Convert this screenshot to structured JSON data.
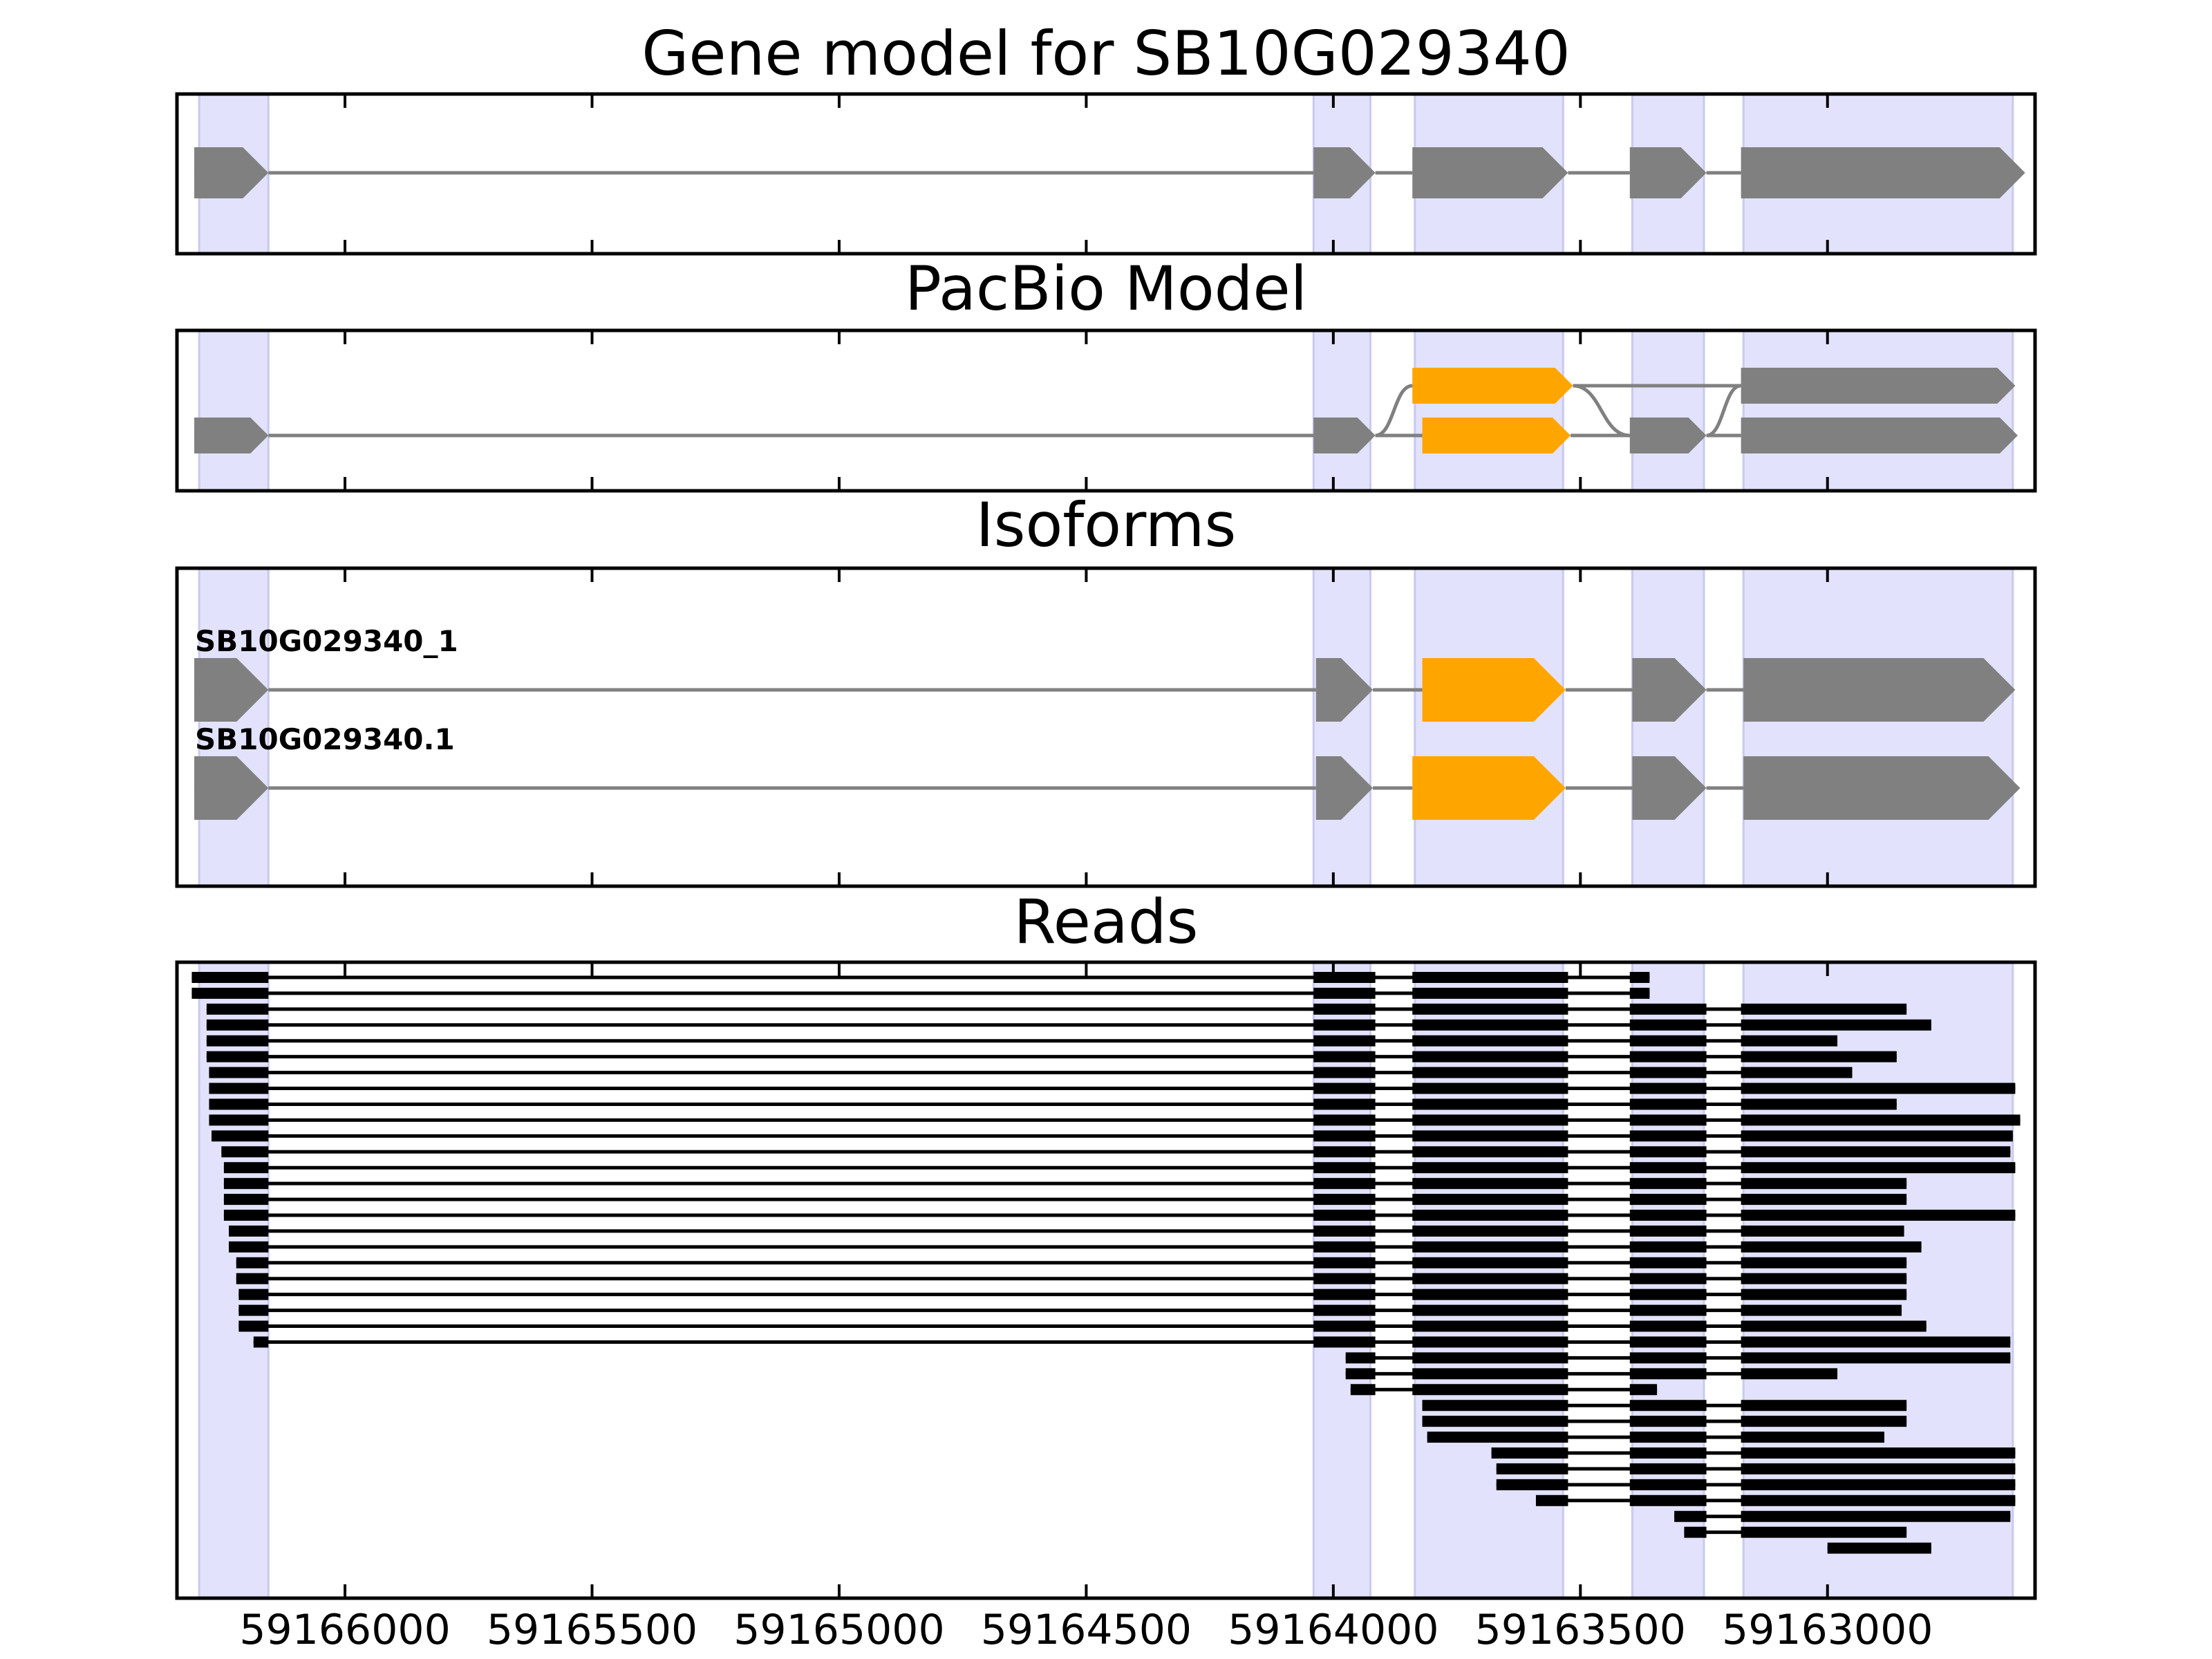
{
  "colors": {
    "exon": "#808080",
    "variant_exon": "#ffa500",
    "intron": "#808080",
    "read": "#000000",
    "shade": "#e2e2fc",
    "shade_edge": "#c9c9ef"
  },
  "chart_data": {
    "type": "gene-track",
    "xlim": [
      59166340,
      59162580
    ],
    "x_ticks": [
      59166000,
      59165500,
      59165000,
      59164500,
      59164000,
      59163500,
      59163000
    ],
    "x_tick_labels": [
      "59166000",
      "59165500",
      "59165000",
      "59164500",
      "59164000",
      "59163500",
      "59163000"
    ],
    "shaded_exons": [
      [
        59166295,
        59166155
      ],
      [
        59164040,
        59163925
      ],
      [
        59163835,
        59163535
      ],
      [
        59163395,
        59163250
      ],
      [
        59163170,
        59162625
      ]
    ],
    "panels": [
      {
        "title": "Gene model for SB10G029340",
        "tracks": [
          {
            "name": "",
            "exons": [
              [
                59166305,
                59166155
              ],
              [
                59164040,
                59163915
              ],
              [
                59163840,
                59163525
              ],
              [
                59163400,
                59163245
              ],
              [
                59163175,
                59162600
              ]
            ]
          }
        ]
      },
      {
        "title": "PacBio Model",
        "tracks": [
          {
            "name": "",
            "exons": [
              [
                59163840,
                59163515,
                "v"
              ],
              [
                59163175,
                59162620
              ]
            ]
          },
          {
            "name": "",
            "exons": [
              [
                59166305,
                59166155
              ],
              [
                59164040,
                59163915
              ],
              [
                59163820,
                59163520,
                "v"
              ],
              [
                59163400,
                59163245
              ],
              [
                59163175,
                59162615
              ]
            ]
          }
        ],
        "junctions": [
          {
            "from": 59163915,
            "to": 59163840,
            "from_track": 1,
            "to_track": 0
          },
          {
            "from": 59163515,
            "to": 59163400,
            "from_track": 0,
            "to_track": 1
          },
          {
            "from": 59163245,
            "to": 59163175,
            "from_track": 1,
            "to_track": 0
          }
        ]
      },
      {
        "title": "Isoforms",
        "tracks": [
          {
            "name": "SB10G029340_1",
            "exons": [
              [
                59166305,
                59166155
              ],
              [
                59164035,
                59163920
              ],
              [
                59163820,
                59163530,
                "v"
              ],
              [
                59163395,
                59163245
              ],
              [
                59163170,
                59162620
              ]
            ]
          },
          {
            "name": "SB10G029340.1",
            "exons": [
              [
                59166305,
                59166155
              ],
              [
                59164035,
                59163920
              ],
              [
                59163840,
                59163530,
                "v"
              ],
              [
                59163395,
                59163245
              ],
              [
                59163170,
                59162610
              ]
            ]
          }
        ]
      }
    ],
    "reads": {
      "title": "Reads",
      "items": [
        [
          59166310,
          59163360
        ],
        [
          59166310,
          59163360
        ],
        [
          59166280,
          59162840
        ],
        [
          59166280,
          59162790
        ],
        [
          59166280,
          59162980
        ],
        [
          59166280,
          59162860
        ],
        [
          59166275,
          59162950
        ],
        [
          59166275,
          59162620
        ],
        [
          59166275,
          59162860
        ],
        [
          59166275,
          59162610
        ],
        [
          59166270,
          59162625
        ],
        [
          59166250,
          59162630
        ],
        [
          59166245,
          59162620
        ],
        [
          59166245,
          59162840
        ],
        [
          59166245,
          59162840
        ],
        [
          59166245,
          59162620
        ],
        [
          59166235,
          59162845
        ],
        [
          59166235,
          59162810
        ],
        [
          59166220,
          59162840
        ],
        [
          59166220,
          59162840
        ],
        [
          59166215,
          59162840
        ],
        [
          59166215,
          59162850
        ],
        [
          59166215,
          59162800
        ],
        [
          59166185,
          59162630
        ],
        [
          59163975,
          59162630
        ],
        [
          59163975,
          59162980
        ],
        [
          59163965,
          59163345
        ],
        [
          59163820,
          59162840
        ],
        [
          59163820,
          59162840
        ],
        [
          59163810,
          59162885
        ],
        [
          59163680,
          59162620
        ],
        [
          59163670,
          59162620
        ],
        [
          59163670,
          59162620
        ],
        [
          59163590,
          59162620
        ],
        [
          59163310,
          59162630
        ],
        [
          59163290,
          59162840
        ],
        [
          59163000,
          59162790
        ]
      ]
    }
  }
}
